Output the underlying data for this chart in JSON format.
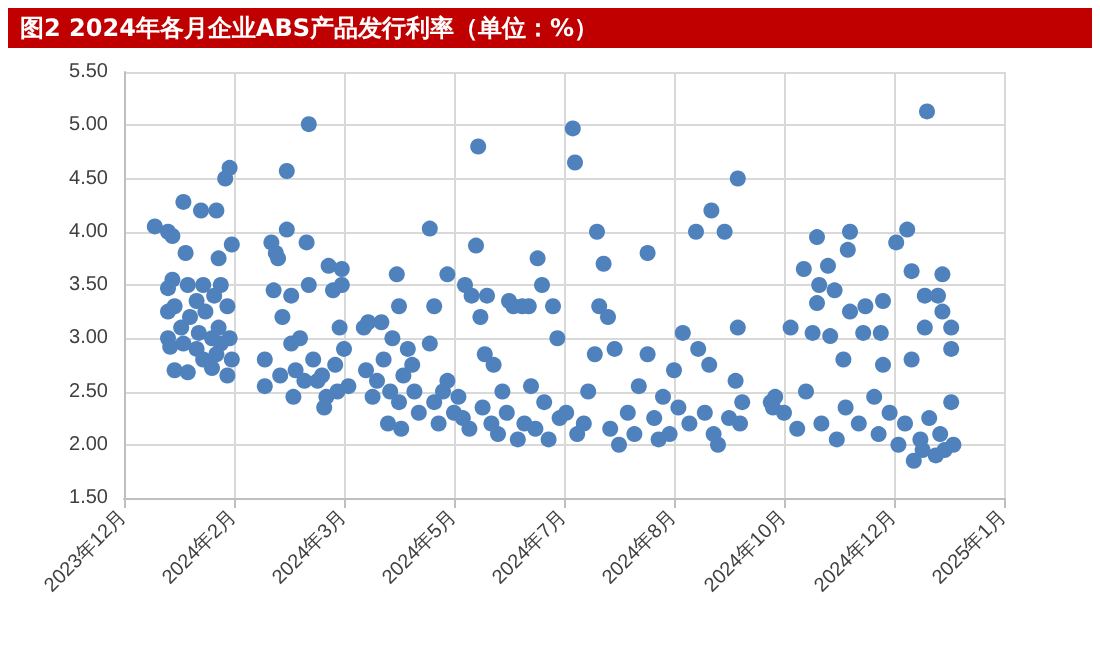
{
  "chart_data": {
    "type": "scatter",
    "title": "图2  2024年各月企业ABS产品发行利率（单位：%）",
    "color": "#4f81bd",
    "marker": "circle",
    "grid": true,
    "xlim": [
      "2023-12-20",
      "2025-01-23"
    ],
    "xticks": [
      {
        "value": "2023-12-20",
        "label": "2023年12月"
      },
      {
        "value": "2024-02-08",
        "label": "2024年2月"
      },
      {
        "value": "2024-03-29",
        "label": "2024年3月"
      },
      {
        "value": "2024-05-18",
        "label": "2024年5月"
      },
      {
        "value": "2024-07-07",
        "label": "2024年7月"
      },
      {
        "value": "2024-08-26",
        "label": "2024年8月"
      },
      {
        "value": "2024-10-15",
        "label": "2024年10月"
      },
      {
        "value": "2024-12-04",
        "label": "2024年12月"
      },
      {
        "value": "2025-01-23",
        "label": "2025年1月"
      }
    ],
    "ylim": [
      1.5,
      5.5
    ],
    "yticks": [
      {
        "value": 1.5,
        "label": "1.50"
      },
      {
        "value": 2,
        "label": "2.00"
      },
      {
        "value": 2.5,
        "label": "2.50"
      },
      {
        "value": 3,
        "label": "3.00"
      },
      {
        "value": 3.5,
        "label": "3.50"
      },
      {
        "value": 4,
        "label": "4.00"
      },
      {
        "value": 4.5,
        "label": "4.50"
      },
      {
        "value": 5,
        "label": "5.00"
      },
      {
        "value": 5.5,
        "label": "5.50"
      }
    ],
    "x": [
      "2024-01-03",
      "2024-01-09",
      "2024-01-11",
      "2024-01-16",
      "2024-01-24",
      "2024-01-31",
      "2024-02-04",
      "2024-02-06",
      "2024-01-17",
      "2024-02-01",
      "2024-02-07",
      "2024-01-11",
      "2024-01-09",
      "2024-01-18",
      "2024-01-25",
      "2024-02-02",
      "2024-01-09",
      "2024-01-09",
      "2024-01-10",
      "2024-01-12",
      "2024-01-12",
      "2024-01-15",
      "2024-01-16",
      "2024-01-18",
      "2024-01-19",
      "2024-01-22",
      "2024-01-22",
      "2024-01-23",
      "2024-01-25",
      "2024-01-26",
      "2024-01-29",
      "2024-01-29",
      "2024-01-30",
      "2024-01-31",
      "2024-02-01",
      "2024-02-02",
      "2024-02-05",
      "2024-02-05",
      "2024-02-06",
      "2024-02-07",
      "2024-02-22",
      "2024-02-22",
      "2024-02-25",
      "2024-02-26",
      "2024-02-27",
      "2024-02-28",
      "2024-03-01",
      "2024-03-03",
      "2024-03-03",
      "2024-03-05",
      "2024-03-05",
      "2024-03-06",
      "2024-03-09",
      "2024-03-12",
      "2024-03-13",
      "2024-03-13",
      "2024-03-17",
      "2024-03-20",
      "2024-03-22",
      "2024-03-24",
      "2024-03-28",
      "2024-03-28",
      "2024-03-26",
      "2024-03-29",
      "2024-03-31",
      "2024-03-07",
      "2024-03-11",
      "2024-03-15",
      "2024-03-19",
      "2024-03-25",
      "2024-02-29",
      "2024-03-27",
      "2024-03-21",
      "2024-04-07",
      "2024-04-09",
      "2024-04-13",
      "2024-04-15",
      "2024-04-18",
      "2024-04-20",
      "2024-04-22",
      "2024-04-23",
      "2024-04-23",
      "2024-04-24",
      "2024-04-27",
      "2024-04-30",
      "2024-05-02",
      "2024-04-08",
      "2024-04-11",
      "2024-04-16",
      "2024-04-19",
      "2024-04-25",
      "2024-04-29",
      "2024-05-07",
      "2024-05-07",
      "2024-05-09",
      "2024-05-09",
      "2024-05-11",
      "2024-05-15",
      "2024-05-15",
      "2024-05-18",
      "2024-05-13",
      "2024-05-20",
      "2024-05-23",
      "2024-05-26",
      "2024-05-28",
      "2024-05-29",
      "2024-05-30",
      "2024-06-01",
      "2024-06-02",
      "2024-06-05",
      "2024-06-07",
      "2024-06-12",
      "2024-06-14",
      "2024-06-16",
      "2024-06-18",
      "2024-06-21",
      "2024-06-25",
      "2024-06-27",
      "2024-06-30",
      "2024-07-02",
      "2024-07-04",
      "2024-05-22",
      "2024-05-25",
      "2024-05-31",
      "2024-06-04",
      "2024-06-09",
      "2024-06-11",
      "2024-06-19",
      "2024-06-22",
      "2024-06-24",
      "2024-06-28",
      "2024-07-05",
      "2024-07-11",
      "2024-07-12",
      "2024-07-13",
      "2024-07-21",
      "2024-07-22",
      "2024-07-23",
      "2024-07-25",
      "2024-07-27",
      "2024-07-30",
      "2024-08-01",
      "2024-08-14",
      "2024-08-14",
      "2024-08-19",
      "2024-08-21",
      "2024-08-26",
      "2024-08-30",
      "2024-09-05",
      "2024-09-06",
      "2024-09-11",
      "2024-09-12",
      "2024-09-15",
      "2024-09-18",
      "2024-09-24",
      "2024-09-24",
      "2024-09-26",
      "2024-07-08",
      "2024-07-16",
      "2024-07-18",
      "2024-07-28",
      "2024-08-05",
      "2024-08-08",
      "2024-08-10",
      "2024-08-17",
      "2024-08-24",
      "2024-08-28",
      "2024-09-02",
      "2024-09-09",
      "2024-09-13",
      "2024-09-20",
      "2024-09-23",
      "2024-09-25",
      "2024-10-09",
      "2024-10-10",
      "2024-10-11",
      "2024-10-18",
      "2024-10-24",
      "2024-10-28",
      "2024-10-30",
      "2024-10-30",
      "2024-10-31",
      "2024-11-04",
      "2024-11-05",
      "2024-11-07",
      "2024-11-11",
      "2024-11-13",
      "2024-11-14",
      "2024-11-14",
      "2024-11-20",
      "2024-11-21",
      "2024-11-28",
      "2024-11-29",
      "2024-11-29",
      "2024-12-05",
      "2024-12-10",
      "2024-12-12",
      "2024-12-12",
      "2024-12-18",
      "2024-12-18",
      "2024-12-19",
      "2024-12-24",
      "2024-12-26",
      "2024-12-26",
      "2024-12-30",
      "2024-12-30",
      "2024-10-15",
      "2024-10-21",
      "2024-10-25",
      "2024-11-01",
      "2024-11-08",
      "2024-11-12",
      "2024-11-18",
      "2024-11-25",
      "2024-11-27",
      "2024-12-02",
      "2024-12-06",
      "2024-12-09",
      "2024-12-13",
      "2024-12-16",
      "2024-12-17",
      "2024-12-20",
      "2024-12-23",
      "2024-12-25",
      "2024-12-27",
      "2024-12-30",
      "2024-12-31"
    ],
    "values": [
      4.05,
      4.0,
      3.96,
      4.28,
      4.2,
      4.2,
      4.5,
      4.6,
      3.8,
      3.75,
      3.88,
      3.55,
      3.47,
      3.5,
      3.5,
      3.5,
      3.25,
      3.0,
      2.92,
      3.3,
      2.7,
      3.1,
      2.95,
      2.68,
      3.2,
      3.35,
      2.9,
      3.05,
      2.8,
      3.25,
      3.0,
      2.72,
      3.4,
      2.85,
      3.1,
      2.95,
      2.65,
      3.3,
      3.0,
      2.8,
      2.8,
      2.55,
      3.9,
      3.45,
      3.8,
      3.75,
      3.2,
      4.57,
      4.02,
      3.4,
      2.95,
      2.45,
      3.0,
      3.9,
      5.01,
      3.5,
      2.6,
      2.35,
      3.68,
      3.45,
      3.65,
      3.5,
      2.5,
      2.9,
      2.55,
      2.7,
      2.6,
      2.8,
      2.65,
      2.75,
      2.65,
      3.1,
      2.45,
      3.1,
      3.15,
      2.6,
      3.15,
      2.2,
      3.0,
      3.6,
      2.4,
      3.3,
      2.15,
      2.9,
      2.5,
      2.3,
      2.7,
      2.45,
      2.8,
      2.5,
      2.65,
      2.75,
      4.03,
      2.95,
      3.3,
      2.4,
      2.2,
      3.6,
      2.6,
      2.3,
      2.5,
      2.45,
      3.5,
      3.4,
      3.87,
      4.8,
      3.2,
      2.85,
      3.4,
      2.75,
      2.1,
      3.35,
      3.3,
      2.05,
      3.3,
      3.3,
      3.75,
      3.5,
      2.05,
      3.3,
      3.0,
      2.25,
      2.15,
      2.35,
      2.2,
      2.5,
      2.3,
      2.2,
      2.55,
      2.15,
      2.4,
      2.25,
      4.97,
      4.65,
      2.1,
      2.85,
      4.0,
      3.3,
      3.7,
      3.2,
      2.9,
      2.0,
      3.8,
      2.85,
      2.05,
      2.45,
      2.7,
      3.05,
      4.0,
      2.9,
      2.75,
      4.2,
      2.0,
      4.0,
      4.5,
      3.1,
      2.4,
      2.3,
      2.2,
      2.5,
      2.15,
      2.3,
      2.1,
      2.55,
      2.25,
      2.1,
      2.35,
      2.2,
      2.3,
      2.1,
      2.25,
      2.6,
      2.2,
      2.4,
      2.35,
      2.45,
      3.1,
      3.65,
      3.05,
      3.95,
      3.33,
      3.5,
      3.68,
      3.02,
      3.45,
      2.8,
      3.83,
      4.0,
      3.25,
      3.05,
      3.3,
      3.05,
      3.35,
      2.75,
      3.9,
      4.02,
      3.63,
      2.8,
      3.4,
      3.1,
      5.13,
      3.4,
      3.6,
      3.25,
      3.1,
      2.9,
      2.3,
      2.15,
      2.5,
      2.2,
      2.05,
      2.35,
      2.2,
      2.45,
      2.1,
      2.3,
      2.0,
      2.2,
      1.85,
      2.05,
      1.95,
      2.25,
      1.9,
      2.1,
      1.95,
      2.4,
      2.0
    ]
  }
}
